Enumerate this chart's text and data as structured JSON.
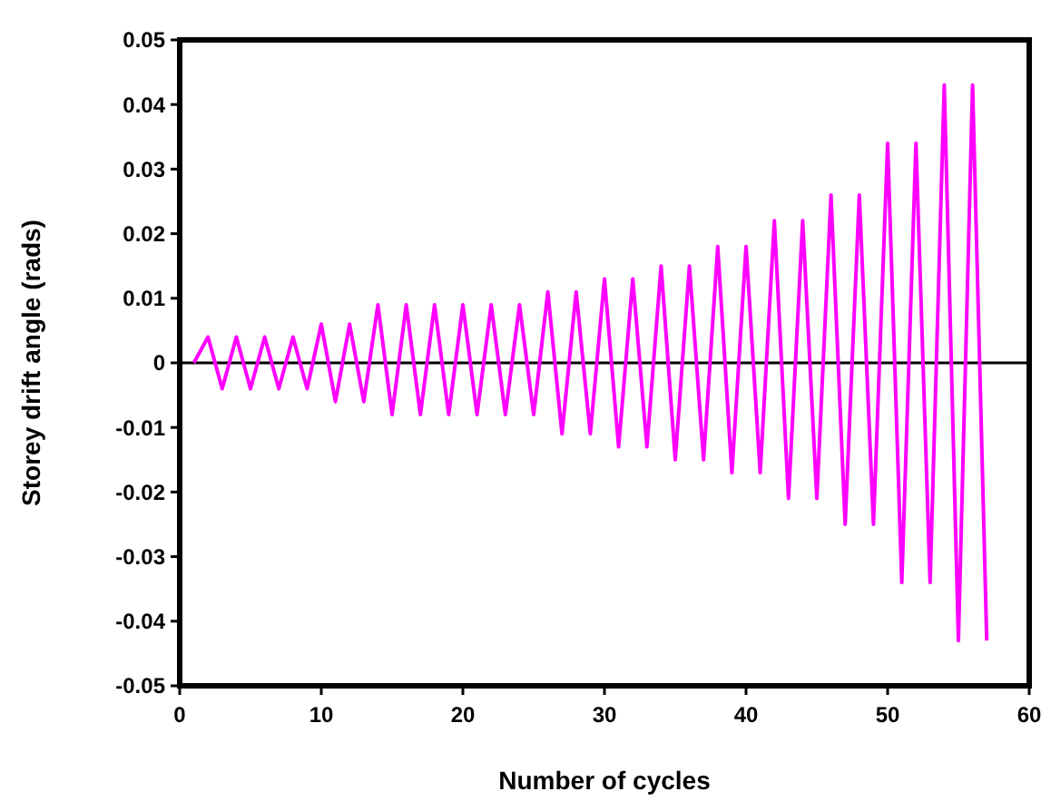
{
  "chart_data": {
    "type": "line",
    "xlabel": "Number of cycles",
    "ylabel": "Storey drift angle (rads)",
    "x": [
      1,
      2,
      3,
      4,
      5,
      6,
      7,
      8,
      9,
      10,
      11,
      12,
      13,
      14,
      15,
      16,
      17,
      18,
      19,
      20,
      21,
      22,
      23,
      24,
      25,
      26,
      27,
      28,
      29,
      30,
      31,
      32,
      33,
      34,
      35,
      36,
      37,
      38,
      39,
      40,
      41,
      42,
      43,
      44,
      45,
      46,
      47,
      48,
      49,
      50,
      51,
      52,
      53,
      54,
      55,
      56,
      57
    ],
    "series": [
      {
        "color": "#ff00ff",
        "values": [
          0,
          0.004,
          -0.004,
          0.004,
          -0.004,
          0.004,
          -0.004,
          0.004,
          -0.004,
          0.006,
          -0.006,
          0.006,
          -0.006,
          0.009,
          -0.008,
          0.009,
          -0.008,
          0.009,
          -0.008,
          0.009,
          -0.008,
          0.009,
          -0.008,
          0.009,
          -0.008,
          0.011,
          -0.011,
          0.011,
          -0.011,
          0.013,
          -0.013,
          0.013,
          -0.013,
          0.015,
          -0.015,
          0.015,
          -0.015,
          0.018,
          -0.017,
          0.018,
          -0.017,
          0.022,
          -0.021,
          0.022,
          -0.021,
          0.026,
          -0.025,
          0.026,
          -0.025,
          0.034,
          -0.034,
          0.034,
          -0.034,
          0.043,
          -0.043,
          0.043,
          -0.043
        ]
      }
    ],
    "xlim": [
      0,
      60
    ],
    "xticks": [
      0,
      10,
      20,
      30,
      40,
      50,
      60
    ],
    "ylim": [
      -0.05,
      0.05
    ],
    "yticks": [
      -0.05,
      -0.04,
      -0.03,
      -0.02,
      -0.01,
      0,
      0.01,
      0.02,
      0.03,
      0.04,
      0.05
    ],
    "ref_lines": [
      {
        "axis": "y",
        "value": 0,
        "color": "#000000"
      }
    ],
    "grid": false,
    "marker": "none",
    "line_style": "solid"
  }
}
